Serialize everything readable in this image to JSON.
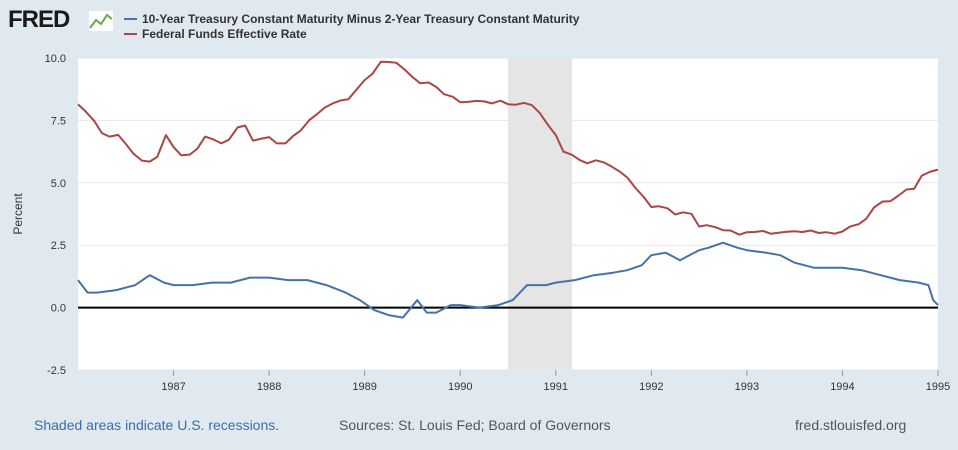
{
  "brand": {
    "name": "FRED"
  },
  "legend": [
    {
      "label": "10-Year Treasury Constant Maturity Minus 2-Year Treasury Constant Maturity",
      "color": "#4572a7"
    },
    {
      "label": "Federal Funds Effective Rate",
      "color": "#aa4643"
    }
  ],
  "footer": {
    "recession_note": "Shaded areas indicate U.S. recessions.",
    "sources": "Sources: St. Louis Fed; Board of Governors",
    "site": "fred.stlouisfed.org"
  },
  "chart_data": {
    "type": "line",
    "ylabel": "Percent",
    "xlabel": "",
    "ylim": [
      -2.5,
      10.0
    ],
    "xlim": [
      1986.0,
      1995.0
    ],
    "yticks": [
      "-2.5",
      "0.0",
      "2.5",
      "5.0",
      "7.5",
      "10.0"
    ],
    "xticks": [
      "1987",
      "1988",
      "1989",
      "1990",
      "1991",
      "1992",
      "1993",
      "1994",
      "1995"
    ],
    "recessions": [
      [
        1990.5,
        1991.17
      ]
    ],
    "grid": true,
    "series": [
      {
        "name": "10-Year Treasury Constant Maturity Minus 2-Year Treasury Constant Maturity",
        "color": "#4572a7",
        "x": [
          1986.0,
          1986.1,
          1986.2,
          1986.4,
          1986.6,
          1986.75,
          1986.9,
          1987.0,
          1987.2,
          1987.4,
          1987.6,
          1987.8,
          1988.0,
          1988.2,
          1988.4,
          1988.6,
          1988.8,
          1988.95,
          1989.1,
          1989.25,
          1989.4,
          1989.55,
          1989.65,
          1989.75,
          1989.9,
          1990.0,
          1990.2,
          1990.4,
          1990.55,
          1990.7,
          1990.9,
          1991.0,
          1991.2,
          1991.4,
          1991.6,
          1991.75,
          1991.9,
          1992.0,
          1992.15,
          1992.3,
          1992.5,
          1992.6,
          1992.75,
          1992.9,
          1993.0,
          1993.2,
          1993.35,
          1993.5,
          1993.7,
          1993.9,
          1994.0,
          1994.2,
          1994.4,
          1994.6,
          1994.8,
          1994.9,
          1994.95,
          1995.0
        ],
        "y": [
          1.1,
          0.6,
          0.6,
          0.7,
          0.9,
          1.3,
          1.0,
          0.9,
          0.9,
          1.0,
          1.0,
          1.2,
          1.2,
          1.1,
          1.1,
          0.9,
          0.6,
          0.3,
          -0.1,
          -0.3,
          -0.4,
          0.3,
          -0.2,
          -0.2,
          0.1,
          0.1,
          0.0,
          0.1,
          0.3,
          0.9,
          0.9,
          1.0,
          1.1,
          1.3,
          1.4,
          1.5,
          1.7,
          2.1,
          2.2,
          1.9,
          2.3,
          2.4,
          2.6,
          2.4,
          2.3,
          2.2,
          2.1,
          1.8,
          1.6,
          1.6,
          1.6,
          1.5,
          1.3,
          1.1,
          1.0,
          0.9,
          0.3,
          0.1
        ]
      },
      {
        "name": "Federal Funds Effective Rate",
        "color": "#aa4643",
        "x": [
          1986.0,
          1986.08,
          1986.17,
          1986.25,
          1986.33,
          1986.42,
          1986.5,
          1986.58,
          1986.67,
          1986.75,
          1986.83,
          1986.92,
          1987.0,
          1987.08,
          1987.17,
          1987.25,
          1987.33,
          1987.42,
          1987.5,
          1987.58,
          1987.67,
          1987.75,
          1987.83,
          1987.92,
          1988.0,
          1988.08,
          1988.17,
          1988.25,
          1988.33,
          1988.42,
          1988.5,
          1988.58,
          1988.67,
          1988.75,
          1988.83,
          1988.92,
          1989.0,
          1989.08,
          1989.17,
          1989.25,
          1989.33,
          1989.42,
          1989.5,
          1989.58,
          1989.67,
          1989.75,
          1989.83,
          1989.92,
          1990.0,
          1990.08,
          1990.17,
          1990.25,
          1990.33,
          1990.42,
          1990.5,
          1990.58,
          1990.67,
          1990.75,
          1990.83,
          1990.92,
          1991.0,
          1991.08,
          1991.17,
          1991.25,
          1991.33,
          1991.42,
          1991.5,
          1991.58,
          1991.67,
          1991.75,
          1991.83,
          1991.92,
          1992.0,
          1992.08,
          1992.17,
          1992.25,
          1992.33,
          1992.42,
          1992.5,
          1992.58,
          1992.67,
          1992.75,
          1992.83,
          1992.92,
          1993.0,
          1993.08,
          1993.17,
          1993.25,
          1993.33,
          1993.42,
          1993.5,
          1993.58,
          1993.67,
          1993.75,
          1993.83,
          1993.92,
          1994.0,
          1994.08,
          1994.17,
          1994.25,
          1994.33,
          1994.42,
          1994.5,
          1994.58,
          1994.67,
          1994.75,
          1994.83,
          1994.92,
          1995.0
        ],
        "y": [
          8.14,
          7.86,
          7.48,
          6.99,
          6.85,
          6.92,
          6.56,
          6.17,
          5.89,
          5.85,
          6.04,
          6.91,
          6.43,
          6.1,
          6.13,
          6.37,
          6.85,
          6.73,
          6.58,
          6.73,
          7.22,
          7.29,
          6.69,
          6.77,
          6.83,
          6.58,
          6.58,
          6.87,
          7.09,
          7.51,
          7.75,
          8.01,
          8.19,
          8.3,
          8.35,
          8.76,
          9.12,
          9.36,
          9.85,
          9.84,
          9.81,
          9.53,
          9.24,
          8.99,
          9.02,
          8.84,
          8.55,
          8.45,
          8.23,
          8.24,
          8.28,
          8.26,
          8.18,
          8.29,
          8.15,
          8.13,
          8.2,
          8.11,
          7.81,
          7.31,
          6.91,
          6.25,
          6.12,
          5.91,
          5.78,
          5.9,
          5.82,
          5.66,
          5.45,
          5.21,
          4.81,
          4.43,
          4.03,
          4.06,
          3.98,
          3.73,
          3.82,
          3.76,
          3.25,
          3.3,
          3.22,
          3.1,
          3.09,
          2.92,
          3.02,
          3.03,
          3.07,
          2.96,
          3.0,
          3.04,
          3.06,
          3.03,
          3.09,
          2.99,
          3.02,
          2.96,
          3.05,
          3.25,
          3.34,
          3.56,
          4.01,
          4.25,
          4.26,
          4.47,
          4.73,
          4.76,
          5.29,
          5.45,
          5.53
        ]
      }
    ]
  }
}
